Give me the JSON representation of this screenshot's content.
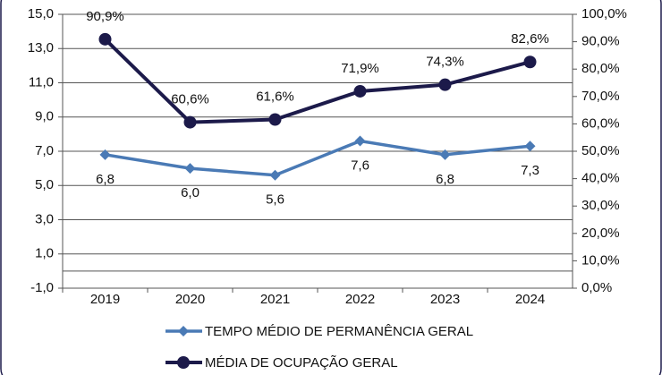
{
  "chart_data": {
    "type": "line",
    "categories": [
      "2019",
      "2020",
      "2021",
      "2022",
      "2023",
      "2024"
    ],
    "series": [
      {
        "name": "TEMPO MÉDIO DE PERMANÊNCIA GERAL",
        "color": "#4a7ab5",
        "marker": "diamond",
        "values": [
          6.8,
          6.0,
          5.6,
          7.6,
          6.8,
          7.3
        ],
        "value_labels": [
          "6,8",
          "6,0",
          "5,6",
          "7,6",
          "6,8",
          "7,3"
        ]
      },
      {
        "name": "MÉDIA DE OCUPAÇÃO GERAL",
        "color": "#1c1a4a",
        "marker": "circle",
        "axis": "y2",
        "values": [
          90.9,
          60.6,
          61.6,
          71.9,
          74.3,
          82.6
        ],
        "value_labels": [
          "90,9%",
          "60,6%",
          "61,6%",
          "71,9%",
          "74,3%",
          "82,6%"
        ]
      }
    ],
    "ylim": [
      -1,
      15
    ],
    "yticks": [
      {
        "value": -1,
        "label": "-1,0"
      },
      {
        "value": 1,
        "label": "1,0"
      },
      {
        "value": 3,
        "label": "3,0"
      },
      {
        "value": 5,
        "label": "5,0"
      },
      {
        "value": 7,
        "label": "7,0"
      },
      {
        "value": 9,
        "label": "9,0"
      },
      {
        "value": 11,
        "label": "11,0"
      },
      {
        "value": 13,
        "label": "13,0"
      },
      {
        "value": 15,
        "label": "15,0"
      }
    ],
    "y2lim": [
      0,
      100
    ],
    "y2ticks": [
      {
        "value": 0,
        "label": "0,0%"
      },
      {
        "value": 10,
        "label": "10,0%"
      },
      {
        "value": 20,
        "label": "20,0%"
      },
      {
        "value": 30,
        "label": "30,0%"
      },
      {
        "value": 40,
        "label": "40,0%"
      },
      {
        "value": 50,
        "label": "50,0%"
      },
      {
        "value": 60,
        "label": "60,0%"
      },
      {
        "value": 70,
        "label": "70,0%"
      },
      {
        "value": 80,
        "label": "80,0%"
      },
      {
        "value": 90,
        "label": "90,0%"
      },
      {
        "value": 100,
        "label": "100,0%"
      }
    ],
    "grid": true,
    "legend": "bottom"
  }
}
